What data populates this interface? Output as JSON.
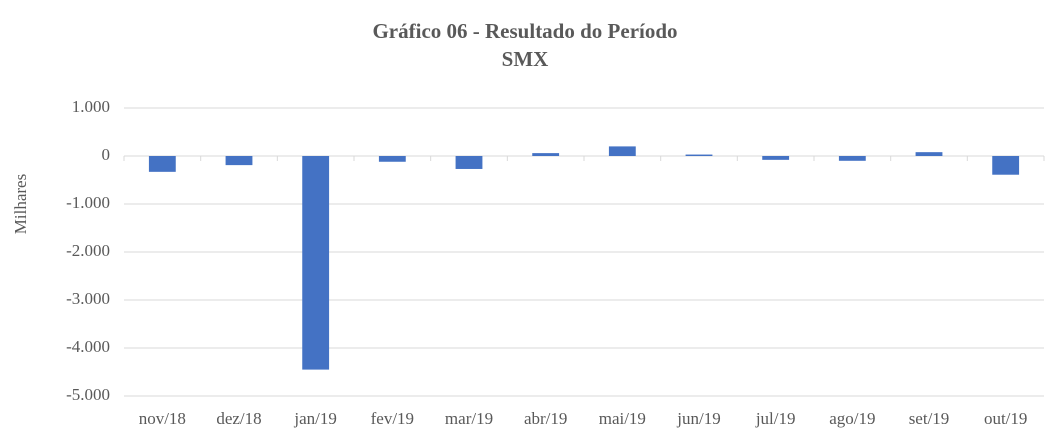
{
  "chart_data": {
    "type": "bar",
    "title": "Gráfico 06 - Resultado do Período",
    "subtitle": "SMX",
    "y_label": "Milhares",
    "categories": [
      "nov/18",
      "dez/18",
      "jan/19",
      "fev/19",
      "mar/19",
      "abr/19",
      "mai/19",
      "jun/19",
      "jul/19",
      "ago/19",
      "set/19",
      "out/19"
    ],
    "values": [
      -330,
      -190,
      -4450,
      -120,
      -270,
      60,
      200,
      30,
      -80,
      -100,
      80,
      -390
    ],
    "color": "#4472c4",
    "ylim": [
      -5000,
      1000
    ],
    "yticks": [
      {
        "value": 1000,
        "label": "1.000"
      },
      0,
      {
        "value": -1000,
        "label": "-1.000"
      },
      {
        "value": -2000,
        "label": "-2.000"
      },
      {
        "value": -3000,
        "label": "-3.000"
      },
      {
        "value": -4000,
        "label": "-4.000"
      },
      {
        "value": -5000,
        "label": "-5.000"
      }
    ],
    "grid": true
  }
}
